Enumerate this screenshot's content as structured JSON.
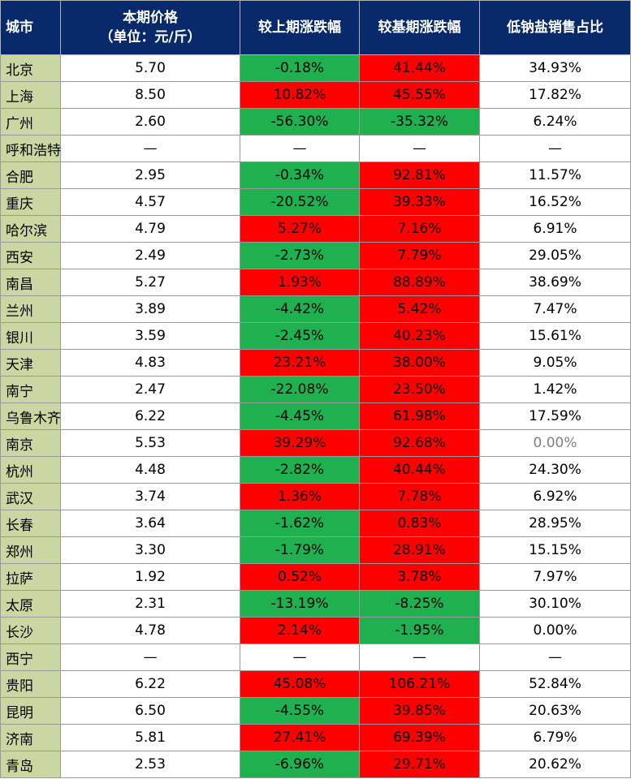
{
  "header": {
    "city": "城市",
    "price_line1": "本期价格",
    "price_line2": "（单位：元/斤）",
    "vs_last": "较上期涨跌幅",
    "vs_base": "较基期涨跌幅",
    "low_sodium": "低钠盐销售占比"
  },
  "colors": {
    "header_bg": "#082a6a",
    "city_bg": "#cbd7a3",
    "increase": "#ff0000",
    "decrease": "#1fb14f"
  },
  "rows": [
    {
      "city": "北京",
      "price": "5.70",
      "vs_last": "-0.18%",
      "vs_base": "41.44%",
      "low_sodium": "34.93%"
    },
    {
      "city": "上海",
      "price": "8.50",
      "vs_last": "10.82%",
      "vs_base": "45.55%",
      "low_sodium": "17.82%"
    },
    {
      "city": "广州",
      "price": "2.60",
      "vs_last": "-56.30%",
      "vs_base": "-35.32%",
      "low_sodium": "6.24%"
    },
    {
      "city": "呼和浩特",
      "price": "—",
      "vs_last": "—",
      "vs_base": "—",
      "low_sodium": "—"
    },
    {
      "city": "合肥",
      "price": "2.95",
      "vs_last": "-0.34%",
      "vs_base": "92.81%",
      "low_sodium": "11.57%"
    },
    {
      "city": "重庆",
      "price": "4.57",
      "vs_last": "-20.52%",
      "vs_base": "39.33%",
      "low_sodium": "16.52%"
    },
    {
      "city": "哈尔滨",
      "price": "4.79",
      "vs_last": "5.27%",
      "vs_base": "7.16%",
      "low_sodium": "6.91%"
    },
    {
      "city": "西安",
      "price": "2.49",
      "vs_last": "-2.73%",
      "vs_base": "7.79%",
      "low_sodium": "29.05%"
    },
    {
      "city": "南昌",
      "price": "5.27",
      "vs_last": "1.93%",
      "vs_base": "88.89%",
      "low_sodium": "38.69%"
    },
    {
      "city": "兰州",
      "price": "3.89",
      "vs_last": "-4.42%",
      "vs_base": "5.42%",
      "low_sodium": "7.47%"
    },
    {
      "city": "银川",
      "price": "3.59",
      "vs_last": "-2.45%",
      "vs_base": "40.23%",
      "low_sodium": "15.61%"
    },
    {
      "city": "天津",
      "price": "4.83",
      "vs_last": "23.21%",
      "vs_base": "38.00%",
      "low_sodium": "9.05%"
    },
    {
      "city": "南宁",
      "price": "2.47",
      "vs_last": "-22.08%",
      "vs_base": "23.50%",
      "low_sodium": "1.42%"
    },
    {
      "city": "乌鲁木齐",
      "price": "6.22",
      "vs_last": "-4.45%",
      "vs_base": "61.98%",
      "low_sodium": "17.59%"
    },
    {
      "city": "南京",
      "price": "5.53",
      "vs_last": "39.29%",
      "vs_base": "92.68%",
      "low_sodium": "0.00%"
    },
    {
      "city": "杭州",
      "price": "4.48",
      "vs_last": "-2.82%",
      "vs_base": "40.44%",
      "low_sodium": "24.30%"
    },
    {
      "city": "武汉",
      "price": "3.74",
      "vs_last": "1.36%",
      "vs_base": "7.78%",
      "low_sodium": "6.92%"
    },
    {
      "city": "长春",
      "price": "3.64",
      "vs_last": "-1.62%",
      "vs_base": "0.83%",
      "low_sodium": "28.95%"
    },
    {
      "city": "郑州",
      "price": "3.30",
      "vs_last": "-1.79%",
      "vs_base": "28.91%",
      "low_sodium": "15.15%"
    },
    {
      "city": "拉萨",
      "price": "1.92",
      "vs_last": "0.52%",
      "vs_base": "3.78%",
      "low_sodium": "7.97%"
    },
    {
      "city": "太原",
      "price": "2.31",
      "vs_last": "-13.19%",
      "vs_base": "-8.25%",
      "low_sodium": "30.10%"
    },
    {
      "city": "长沙",
      "price": "4.78",
      "vs_last": "2.14%",
      "vs_base": "-1.95%",
      "low_sodium": "0.00%"
    },
    {
      "city": "西宁",
      "price": "—",
      "vs_last": "—",
      "vs_base": "—",
      "low_sodium": "—"
    },
    {
      "city": "贵阳",
      "price": "6.22",
      "vs_last": "45.08%",
      "vs_base": "106.21%",
      "low_sodium": "52.84%"
    },
    {
      "city": "昆明",
      "price": "6.50",
      "vs_last": "-4.55%",
      "vs_base": "39.85%",
      "low_sodium": "20.63%"
    },
    {
      "city": "济南",
      "price": "5.81",
      "vs_last": "27.41%",
      "vs_base": "69.39%",
      "low_sodium": "6.79%"
    },
    {
      "city": "青岛",
      "price": "2.53",
      "vs_last": "-6.96%",
      "vs_base": "29.71%",
      "low_sodium": "20.62%"
    }
  ]
}
